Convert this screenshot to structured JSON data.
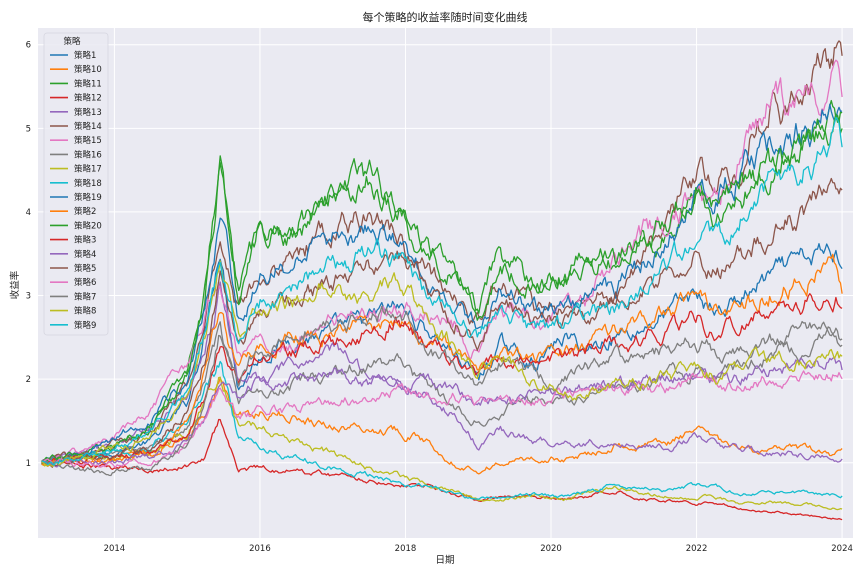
{
  "chart_data": {
    "type": "line",
    "title": "每个策略的收益率随时间变化曲线",
    "xlabel": "日期",
    "ylabel": "收益率",
    "x_ticks": [
      "2014",
      "2016",
      "2018",
      "2020",
      "2022",
      "2024"
    ],
    "y_ticks": [
      1,
      2,
      3,
      4,
      5,
      6
    ],
    "xlim": [
      2012.95,
      2024.15
    ],
    "ylim": [
      0.1,
      6.2
    ],
    "grid": true,
    "legend_title": "策略",
    "legend_position": "top-left",
    "x_keys": [
      2013.0,
      2013.5,
      2014.0,
      2014.5,
      2015.0,
      2015.25,
      2015.45,
      2015.7,
      2016.0,
      2016.5,
      2017.0,
      2017.5,
      2017.9,
      2018.3,
      2018.7,
      2019.0,
      2019.3,
      2019.8,
      2020.2,
      2020.5,
      2020.9,
      2021.2,
      2021.6,
      2022.0,
      2022.3,
      2022.6,
      2023.0,
      2023.5,
      2023.9,
      2024.0
    ],
    "series": [
      {
        "name": "策略1",
        "color": "#1f77b4",
        "values": [
          1.0,
          1.08,
          1.15,
          1.25,
          1.7,
          2.6,
          3.7,
          1.9,
          2.3,
          2.5,
          2.55,
          2.7,
          2.85,
          2.6,
          2.3,
          2.0,
          2.4,
          2.2,
          2.5,
          2.35,
          2.55,
          2.6,
          2.8,
          3.0,
          2.8,
          2.95,
          3.2,
          3.4,
          3.55,
          3.45
        ]
      },
      {
        "name": "策略10",
        "color": "#ff7f0e",
        "values": [
          1.0,
          1.02,
          1.03,
          1.1,
          1.3,
          1.65,
          2.0,
          1.5,
          1.6,
          1.55,
          1.45,
          1.4,
          1.4,
          1.25,
          1.0,
          0.92,
          1.0,
          1.05,
          1.05,
          1.1,
          1.25,
          1.2,
          1.25,
          1.38,
          1.25,
          1.15,
          1.15,
          1.15,
          1.1,
          1.1
        ]
      },
      {
        "name": "策略11",
        "color": "#2ca02c",
        "values": [
          1.0,
          1.08,
          1.2,
          1.45,
          2.1,
          3.1,
          4.7,
          3.2,
          3.7,
          3.8,
          4.2,
          4.4,
          4.05,
          3.55,
          3.25,
          2.8,
          3.45,
          3.15,
          3.25,
          3.5,
          3.4,
          3.6,
          3.8,
          4.2,
          3.95,
          4.2,
          4.5,
          4.9,
          5.2,
          5.1
        ]
      },
      {
        "name": "策略12",
        "color": "#d62728",
        "values": [
          1.0,
          0.97,
          0.92,
          0.93,
          0.97,
          1.05,
          1.55,
          0.9,
          0.95,
          0.9,
          0.86,
          0.8,
          0.75,
          0.72,
          0.62,
          0.55,
          0.58,
          0.58,
          0.55,
          0.6,
          0.66,
          0.6,
          0.55,
          0.52,
          0.52,
          0.45,
          0.42,
          0.38,
          0.34,
          0.33
        ]
      },
      {
        "name": "策略13",
        "color": "#9467bd",
        "values": [
          1.0,
          1.1,
          1.25,
          1.45,
          1.85,
          2.4,
          3.1,
          2.05,
          2.0,
          2.15,
          2.35,
          2.1,
          1.95,
          1.8,
          1.55,
          1.2,
          1.4,
          1.25,
          1.25,
          1.25,
          1.25,
          1.2,
          1.2,
          1.3,
          1.2,
          1.15,
          1.12,
          1.1,
          1.05,
          1.05
        ]
      },
      {
        "name": "策略14",
        "color": "#8c564b",
        "values": [
          1.0,
          1.1,
          1.22,
          1.4,
          1.9,
          2.7,
          3.8,
          2.85,
          3.3,
          3.5,
          3.8,
          3.95,
          3.7,
          3.25,
          3.0,
          2.65,
          3.2,
          2.85,
          2.8,
          2.95,
          3.05,
          3.4,
          3.8,
          4.45,
          4.45,
          4.7,
          5.2,
          5.35,
          5.95,
          5.6
        ]
      },
      {
        "name": "策略15",
        "color": "#e377c2",
        "values": [
          1.0,
          1.12,
          1.3,
          1.6,
          2.2,
          2.8,
          3.3,
          2.3,
          2.4,
          2.45,
          2.75,
          2.75,
          2.9,
          2.85,
          2.65,
          2.3,
          2.9,
          2.75,
          2.8,
          3.0,
          3.4,
          3.7,
          3.9,
          4.15,
          4.2,
          4.7,
          5.25,
          5.3,
          5.5,
          5.4
        ]
      },
      {
        "name": "策略16",
        "color": "#7f7f7f",
        "values": [
          1.0,
          1.04,
          1.08,
          1.15,
          1.45,
          2.0,
          2.6,
          1.75,
          1.85,
          1.95,
          2.1,
          2.15,
          2.2,
          1.9,
          1.65,
          1.55,
          1.65,
          1.75,
          1.75,
          1.85,
          1.95,
          1.95,
          2.05,
          2.1,
          2.05,
          2.15,
          2.3,
          2.4,
          2.5,
          2.45
        ]
      },
      {
        "name": "策略17",
        "color": "#bcbd22",
        "values": [
          1.0,
          1.03,
          1.05,
          1.1,
          1.35,
          1.75,
          2.1,
          1.45,
          1.45,
          1.25,
          1.1,
          0.95,
          0.85,
          0.75,
          0.65,
          0.55,
          0.55,
          0.6,
          0.58,
          0.65,
          0.72,
          0.65,
          0.6,
          0.6,
          0.58,
          0.5,
          0.52,
          0.5,
          0.45,
          0.45
        ]
      },
      {
        "name": "策略18",
        "color": "#17becf",
        "values": [
          1.0,
          1.04,
          1.1,
          1.2,
          1.5,
          1.9,
          2.2,
          1.3,
          1.2,
          1.05,
          0.95,
          0.85,
          0.75,
          0.7,
          0.62,
          0.55,
          0.6,
          0.62,
          0.6,
          0.65,
          0.75,
          0.7,
          0.68,
          0.72,
          0.7,
          0.62,
          0.65,
          0.65,
          0.62,
          0.62
        ]
      },
      {
        "name": "策略19",
        "color": "#1f77b4",
        "values": [
          1.0,
          1.1,
          1.3,
          1.55,
          2.0,
          2.9,
          4.0,
          2.7,
          3.2,
          3.4,
          3.65,
          3.8,
          3.6,
          3.15,
          2.9,
          2.6,
          3.05,
          2.8,
          2.85,
          3.05,
          3.1,
          3.35,
          3.75,
          4.15,
          4.25,
          4.5,
          4.8,
          5.0,
          5.25,
          5.2
        ]
      },
      {
        "name": "策略2",
        "color": "#ff7f0e",
        "values": [
          1.0,
          1.02,
          1.05,
          1.1,
          1.5,
          2.1,
          2.9,
          2.05,
          2.4,
          2.5,
          2.55,
          2.6,
          2.75,
          2.5,
          2.3,
          2.05,
          2.4,
          2.2,
          2.35,
          2.4,
          2.55,
          2.65,
          2.85,
          2.95,
          2.8,
          2.9,
          3.05,
          3.25,
          3.35,
          3.05
        ]
      },
      {
        "name": "策略20",
        "color": "#2ca02c",
        "values": [
          1.0,
          1.08,
          1.22,
          1.45,
          2.0,
          3.0,
          4.6,
          3.0,
          3.8,
          3.9,
          4.15,
          4.35,
          4.05,
          3.5,
          3.2,
          2.8,
          3.3,
          3.1,
          3.2,
          3.4,
          3.4,
          3.6,
          3.9,
          4.3,
          4.1,
          4.3,
          4.5,
          4.75,
          5.05,
          4.95
        ]
      },
      {
        "name": "策略3",
        "color": "#d62728",
        "values": [
          1.0,
          1.02,
          1.05,
          1.1,
          1.35,
          1.85,
          2.5,
          2.0,
          2.3,
          2.35,
          2.45,
          2.55,
          2.7,
          2.4,
          2.2,
          2.05,
          2.3,
          2.15,
          2.25,
          2.3,
          2.45,
          2.45,
          2.6,
          2.75,
          2.55,
          2.65,
          2.8,
          2.95,
          3.0,
          2.95
        ]
      },
      {
        "name": "策略4",
        "color": "#9467bd",
        "values": [
          1.0,
          1.0,
          1.02,
          1.05,
          1.25,
          1.6,
          2.1,
          1.85,
          2.0,
          2.0,
          2.05,
          1.95,
          1.95,
          1.95,
          1.85,
          1.7,
          1.85,
          1.8,
          1.85,
          1.9,
          1.95,
          1.95,
          2.0,
          2.1,
          2.0,
          2.0,
          2.1,
          2.15,
          2.2,
          2.1
        ]
      },
      {
        "name": "策略5",
        "color": "#8c564b",
        "values": [
          1.0,
          1.04,
          1.1,
          1.2,
          1.6,
          2.3,
          3.3,
          2.35,
          2.8,
          2.95,
          3.2,
          3.35,
          3.5,
          3.05,
          2.75,
          2.4,
          2.95,
          2.65,
          2.7,
          2.8,
          2.95,
          3.05,
          3.25,
          3.45,
          3.3,
          3.45,
          3.75,
          3.95,
          4.3,
          4.15
        ]
      },
      {
        "name": "策略6",
        "color": "#e377c2",
        "values": [
          1.0,
          1.0,
          1.0,
          1.02,
          1.2,
          1.55,
          1.9,
          1.55,
          1.6,
          1.65,
          1.7,
          1.8,
          1.9,
          1.9,
          1.8,
          1.65,
          1.75,
          1.75,
          1.8,
          1.8,
          1.85,
          1.85,
          1.9,
          2.0,
          1.95,
          1.95,
          2.0,
          2.05,
          2.1,
          2.05
        ]
      },
      {
        "name": "策略7",
        "color": "#7f7f7f",
        "values": [
          1.0,
          0.92,
          0.9,
          0.95,
          1.25,
          1.8,
          2.6,
          2.0,
          2.4,
          2.55,
          2.65,
          2.7,
          2.8,
          2.4,
          2.15,
          1.9,
          2.2,
          2.0,
          2.05,
          2.15,
          2.25,
          2.2,
          2.35,
          2.45,
          2.3,
          2.35,
          2.45,
          2.55,
          2.6,
          2.4
        ]
      },
      {
        "name": "策略8",
        "color": "#bcbd22",
        "values": [
          1.0,
          1.05,
          1.15,
          1.3,
          1.8,
          2.55,
          3.5,
          2.5,
          2.8,
          2.95,
          3.1,
          3.05,
          3.2,
          2.7,
          2.4,
          2.1,
          2.3,
          2.0,
          1.85,
          1.8,
          1.95,
          2.0,
          2.05,
          2.1,
          2.05,
          2.15,
          2.2,
          2.25,
          2.3,
          2.25
        ]
      },
      {
        "name": "策略9",
        "color": "#17becf",
        "values": [
          1.0,
          1.07,
          1.2,
          1.4,
          1.85,
          2.6,
          3.5,
          2.5,
          2.9,
          3.1,
          3.35,
          3.5,
          3.4,
          3.0,
          2.75,
          2.45,
          2.9,
          2.6,
          2.65,
          2.8,
          2.85,
          3.0,
          3.3,
          3.75,
          3.65,
          3.9,
          4.25,
          4.5,
          4.8,
          4.75
        ]
      }
    ]
  }
}
